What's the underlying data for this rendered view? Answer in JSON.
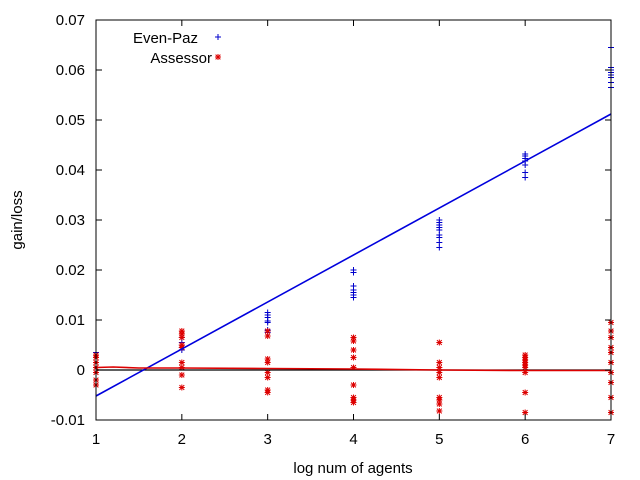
{
  "chart_data": {
    "type": "scatter",
    "xlabel": "log num of agents",
    "ylabel": "gain/loss",
    "xlim": [
      1,
      7
    ],
    "ylim": [
      -0.01,
      0.07
    ],
    "xticks": [
      "1",
      "2",
      "3",
      "4",
      "5",
      "6",
      "7"
    ],
    "yticks": [
      "-0.01",
      "0",
      "0.01",
      "0.02",
      "0.03",
      "0.04",
      "0.05",
      "0.06",
      "0.07"
    ],
    "grid": false,
    "legend_position": "top-left",
    "series": [
      {
        "name": "Even-Paz",
        "marker": "plus",
        "color": "#0000cc",
        "points": [
          {
            "x": 1,
            "y": 0.0035
          },
          {
            "x": 1,
            "y": 0.0025
          },
          {
            "x": 1,
            "y": 0.0015
          },
          {
            "x": 1,
            "y": 0.0005
          },
          {
            "x": 2,
            "y": 0.0065
          },
          {
            "x": 2,
            "y": 0.0055
          },
          {
            "x": 2,
            "y": 0.005
          },
          {
            "x": 2,
            "y": 0.0045
          },
          {
            "x": 2,
            "y": 0.004
          },
          {
            "x": 3,
            "y": 0.0115
          },
          {
            "x": 3,
            "y": 0.011
          },
          {
            "x": 3,
            "y": 0.0105
          },
          {
            "x": 3,
            "y": 0.0098
          },
          {
            "x": 3,
            "y": 0.0095
          },
          {
            "x": 3,
            "y": 0.008
          },
          {
            "x": 3,
            "y": 0.0075
          },
          {
            "x": 4,
            "y": 0.02
          },
          {
            "x": 4,
            "y": 0.0195
          },
          {
            "x": 4,
            "y": 0.0168
          },
          {
            "x": 4,
            "y": 0.016
          },
          {
            "x": 4,
            "y": 0.0155
          },
          {
            "x": 4,
            "y": 0.015
          },
          {
            "x": 4,
            "y": 0.0145
          },
          {
            "x": 5,
            "y": 0.03
          },
          {
            "x": 5,
            "y": 0.0295
          },
          {
            "x": 5,
            "y": 0.029
          },
          {
            "x": 5,
            "y": 0.0285
          },
          {
            "x": 5,
            "y": 0.028
          },
          {
            "x": 5,
            "y": 0.027
          },
          {
            "x": 5,
            "y": 0.0265
          },
          {
            "x": 5,
            "y": 0.0255
          },
          {
            "x": 5,
            "y": 0.0245
          },
          {
            "x": 6,
            "y": 0.0432
          },
          {
            "x": 6,
            "y": 0.0428
          },
          {
            "x": 6,
            "y": 0.0423
          },
          {
            "x": 6,
            "y": 0.0418
          },
          {
            "x": 6,
            "y": 0.041
          },
          {
            "x": 6,
            "y": 0.0395
          },
          {
            "x": 6,
            "y": 0.0385
          },
          {
            "x": 7,
            "y": 0.0645
          },
          {
            "x": 7,
            "y": 0.0605
          },
          {
            "x": 7,
            "y": 0.06
          },
          {
            "x": 7,
            "y": 0.0595
          },
          {
            "x": 7,
            "y": 0.059
          },
          {
            "x": 7,
            "y": 0.0585
          },
          {
            "x": 7,
            "y": 0.0575
          },
          {
            "x": 7,
            "y": 0.0565
          }
        ],
        "fit_line": {
          "color": "#0000dd",
          "points": [
            {
              "x": 1,
              "y": -0.0052
            },
            {
              "x": 7,
              "y": 0.0512
            }
          ]
        }
      },
      {
        "name": "Assessor",
        "marker": "star",
        "color": "#dd0000",
        "points": [
          {
            "x": 1,
            "y": 0.003
          },
          {
            "x": 1,
            "y": 0.0025
          },
          {
            "x": 1,
            "y": 0.0015
          },
          {
            "x": 1,
            "y": 0.0005
          },
          {
            "x": 1,
            "y": -0.0005
          },
          {
            "x": 1,
            "y": -0.002
          },
          {
            "x": 1,
            "y": -0.003
          },
          {
            "x": 2,
            "y": 0.0078
          },
          {
            "x": 2,
            "y": 0.0072
          },
          {
            "x": 2,
            "y": 0.0065
          },
          {
            "x": 2,
            "y": 0.005
          },
          {
            "x": 2,
            "y": 0.0045
          },
          {
            "x": 2,
            "y": 0.0015
          },
          {
            "x": 2,
            "y": 0.0005
          },
          {
            "x": 2,
            "y": -0.001
          },
          {
            "x": 2,
            "y": -0.0035
          },
          {
            "x": 3,
            "y": 0.0078
          },
          {
            "x": 3,
            "y": 0.0068
          },
          {
            "x": 3,
            "y": 0.0022
          },
          {
            "x": 3,
            "y": 0.0015
          },
          {
            "x": 3,
            "y": -0.0005
          },
          {
            "x": 3,
            "y": -0.0015
          },
          {
            "x": 3,
            "y": -0.004
          },
          {
            "x": 3,
            "y": -0.0045
          },
          {
            "x": 4,
            "y": 0.0065
          },
          {
            "x": 4,
            "y": 0.0058
          },
          {
            "x": 4,
            "y": 0.004
          },
          {
            "x": 4,
            "y": 0.0025
          },
          {
            "x": 4,
            "y": 0.0005
          },
          {
            "x": 4,
            "y": -0.003
          },
          {
            "x": 4,
            "y": -0.0055
          },
          {
            "x": 4,
            "y": -0.006
          },
          {
            "x": 4,
            "y": -0.0065
          },
          {
            "x": 5,
            "y": 0.0055
          },
          {
            "x": 5,
            "y": 0.0015
          },
          {
            "x": 5,
            "y": 0.0005
          },
          {
            "x": 5,
            "y": -0.0005
          },
          {
            "x": 5,
            "y": -0.0015
          },
          {
            "x": 5,
            "y": -0.0055
          },
          {
            "x": 5,
            "y": -0.006
          },
          {
            "x": 5,
            "y": -0.0068
          },
          {
            "x": 5,
            "y": -0.0082
          },
          {
            "x": 6,
            "y": 0.003
          },
          {
            "x": 6,
            "y": 0.0025
          },
          {
            "x": 6,
            "y": 0.002
          },
          {
            "x": 6,
            "y": 0.0015
          },
          {
            "x": 6,
            "y": 0.001
          },
          {
            "x": 6,
            "y": 0.0005
          },
          {
            "x": 6,
            "y": -0.0005
          },
          {
            "x": 6,
            "y": -0.0045
          },
          {
            "x": 6,
            "y": -0.0085
          },
          {
            "x": 7,
            "y": 0.0095
          },
          {
            "x": 7,
            "y": 0.0078
          },
          {
            "x": 7,
            "y": 0.0065
          },
          {
            "x": 7,
            "y": 0.0045
          },
          {
            "x": 7,
            "y": 0.0035
          },
          {
            "x": 7,
            "y": 0.0015
          },
          {
            "x": 7,
            "y": -0.0005
          },
          {
            "x": 7,
            "y": -0.0025
          },
          {
            "x": 7,
            "y": -0.0055
          },
          {
            "x": 7,
            "y": -0.0085
          }
        ],
        "fit_line": {
          "color": "#dd0000",
          "points": [
            {
              "x": 1,
              "y": 0.0005
            },
            {
              "x": 1.2,
              "y": 0.0006
            },
            {
              "x": 1.5,
              "y": 0.0004
            },
            {
              "x": 2,
              "y": 0.0004
            },
            {
              "x": 3,
              "y": 0.0003
            },
            {
              "x": 4,
              "y": 0.0002
            },
            {
              "x": 5,
              "y": 0.0
            },
            {
              "x": 6,
              "y": -0.0001
            },
            {
              "x": 7,
              "y": -0.0001
            }
          ]
        }
      }
    ],
    "reference_line": {
      "color": "#000000",
      "y": 0
    }
  }
}
